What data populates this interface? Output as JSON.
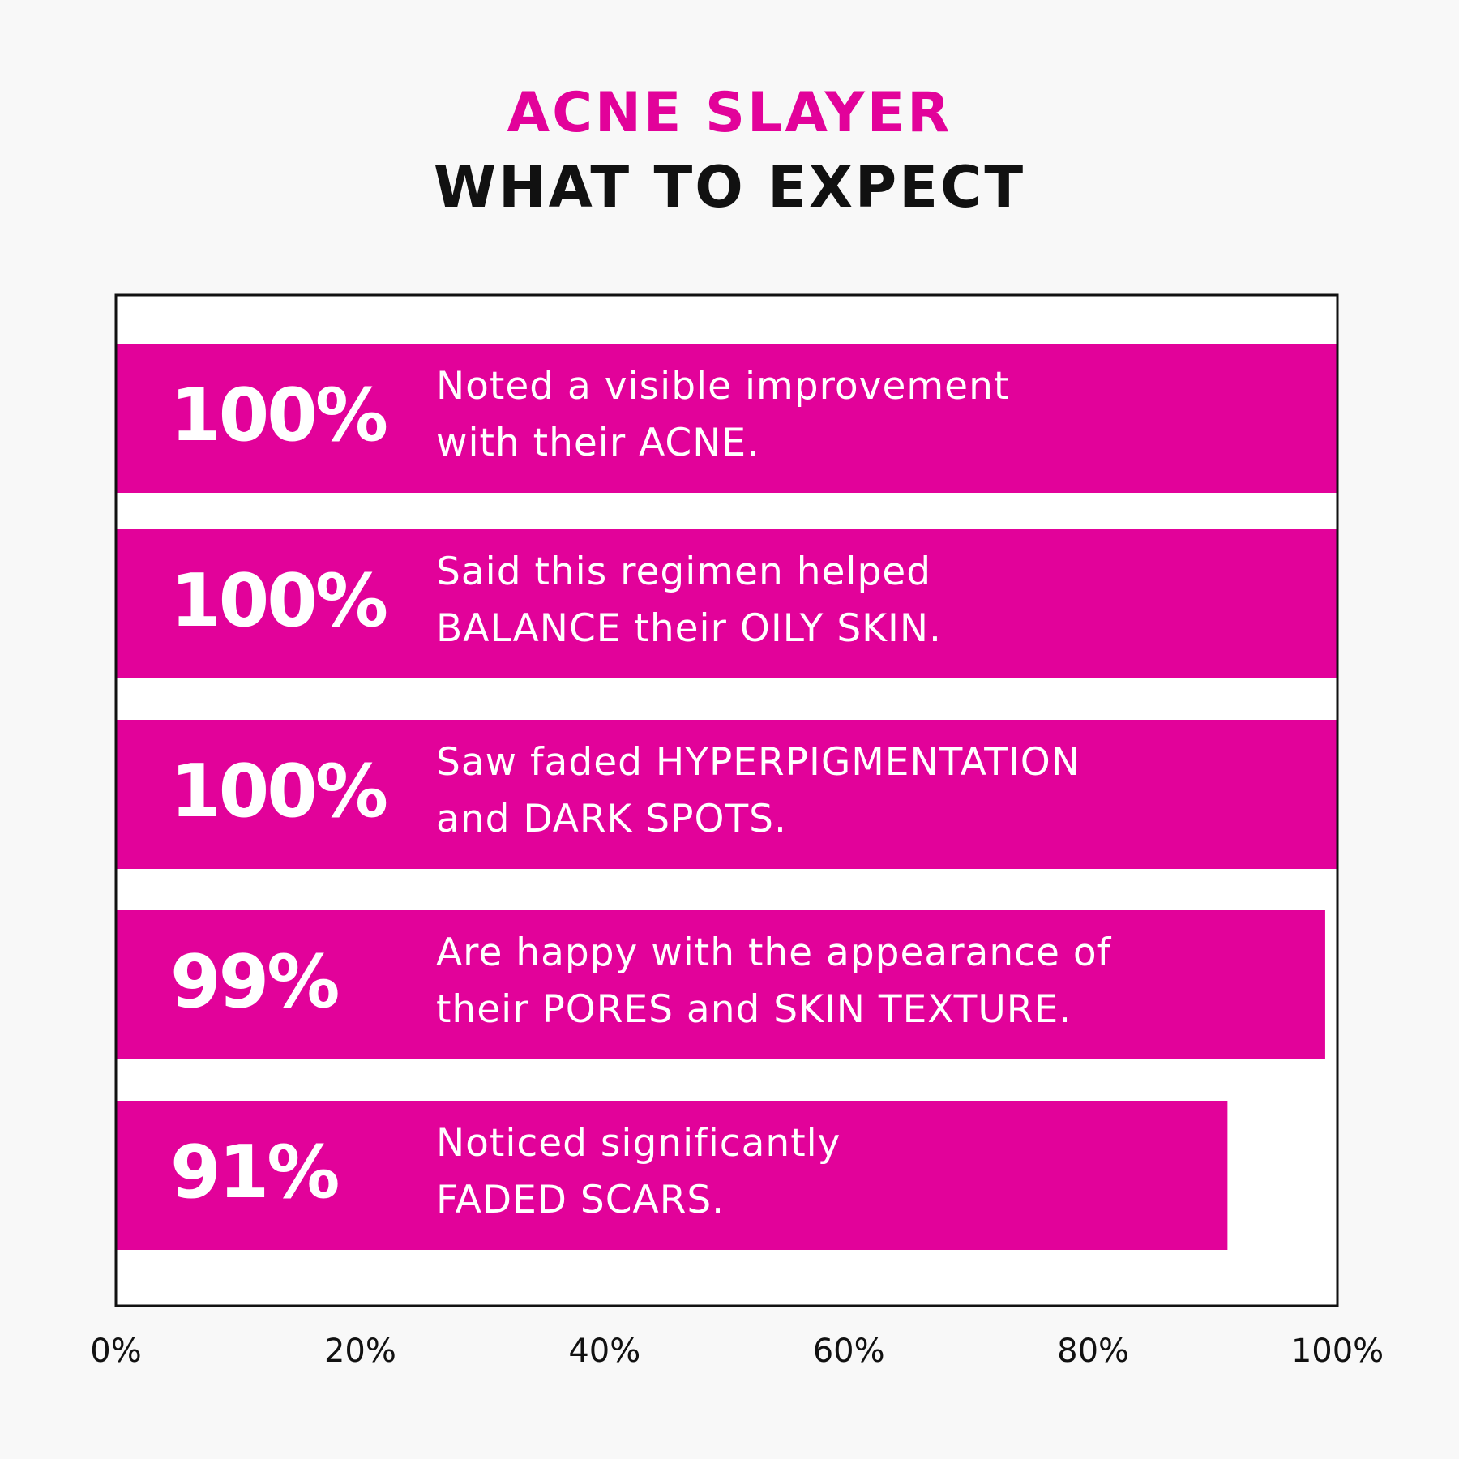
{
  "header": {
    "title_top": "ACNE SLAYER",
    "title_bottom": "WHAT TO EXPECT"
  },
  "colors": {
    "accent": "#e2029a",
    "title_bottom": "#111111",
    "bar_text": "#ffffff",
    "plot_background": "#ffffff",
    "page_background": "#f8f8f8",
    "frame": "#111111"
  },
  "chart_data": {
    "type": "bar",
    "orientation": "horizontal",
    "title": "ACNE SLAYER",
    "subtitle": "WHAT TO EXPECT",
    "xlabel": "",
    "ylabel": "",
    "xlim": [
      0,
      100
    ],
    "x_ticks": [
      0,
      20,
      40,
      60,
      80,
      100
    ],
    "x_tick_labels": [
      "0%",
      "20%",
      "40%",
      "60%",
      "80%",
      "100%"
    ],
    "grid": false,
    "legend": "none",
    "bars": [
      {
        "value": 100,
        "value_label": "100%",
        "text_lines": [
          "Noted a visible improvement",
          "with their ACNE."
        ]
      },
      {
        "value": 100,
        "value_label": "100%",
        "text_lines": [
          "Said this regimen helped",
          "BALANCE their OILY SKIN."
        ]
      },
      {
        "value": 100,
        "value_label": "100%",
        "text_lines": [
          "Saw faded HYPERPIGMENTATION",
          "and DARK SPOTS."
        ]
      },
      {
        "value": 99,
        "value_label": "99%",
        "text_lines": [
          "Are happy with the appearance of",
          "their PORES and SKIN TEXTURE."
        ]
      },
      {
        "value": 91,
        "value_label": "91%",
        "text_lines": [
          "Noticed significantly",
          "FADED SCARS."
        ]
      }
    ]
  }
}
